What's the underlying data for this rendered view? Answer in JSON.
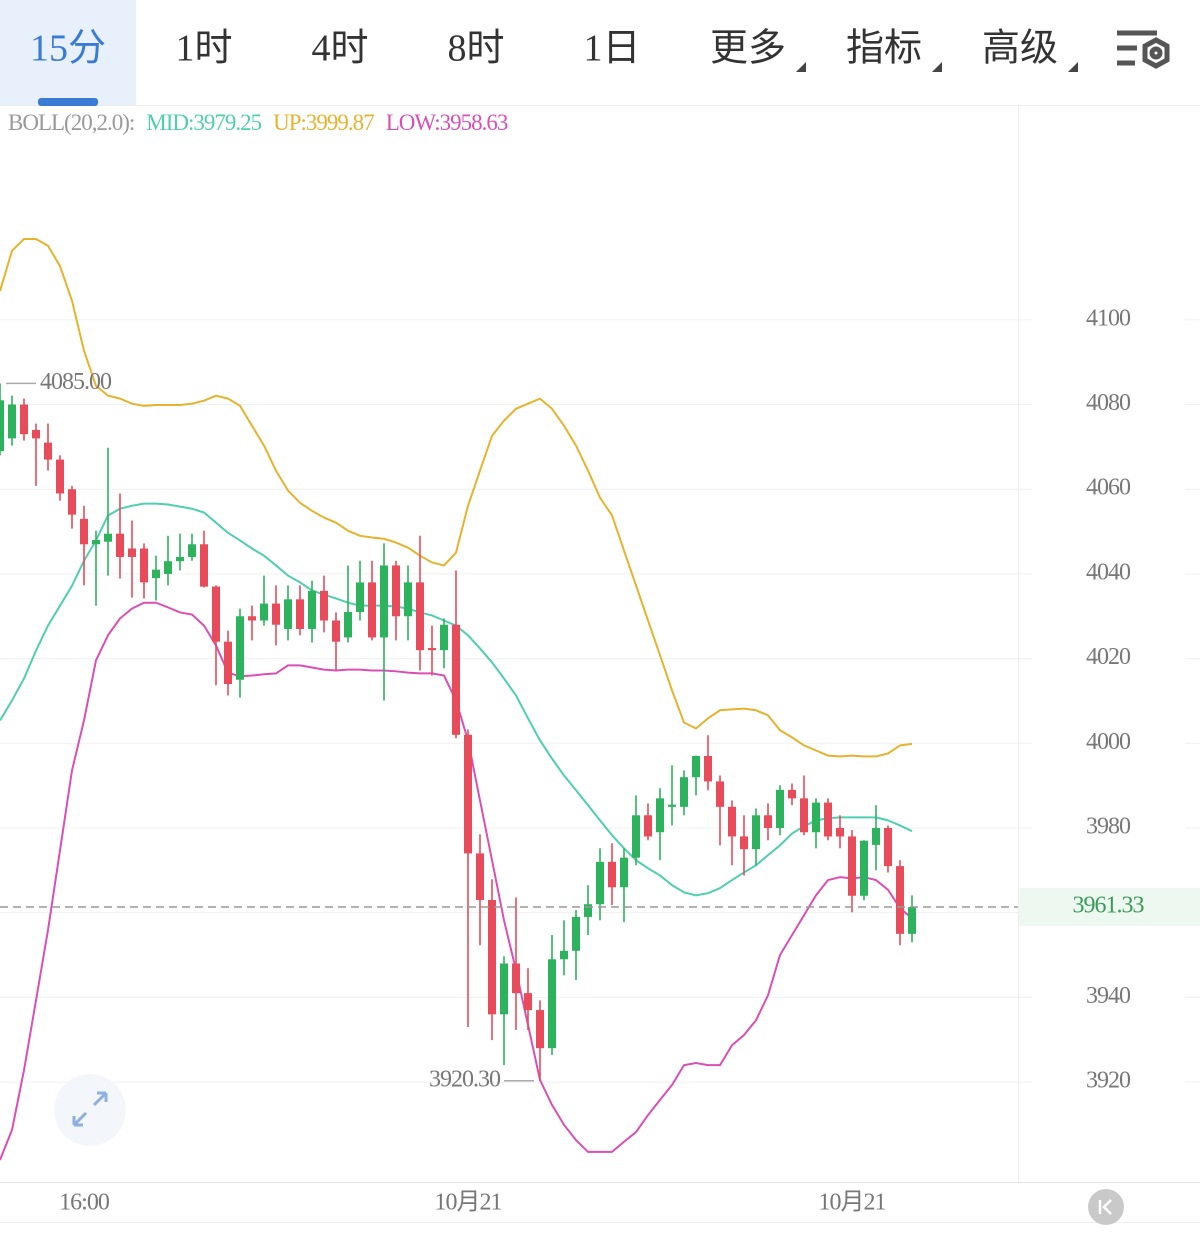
{
  "tabs": [
    {
      "label": "15分",
      "active": true
    },
    {
      "label": "1时"
    },
    {
      "label": "4时"
    },
    {
      "label": "8时"
    },
    {
      "label": "1日"
    },
    {
      "label": "更多",
      "menu": true
    },
    {
      "label": "指标",
      "menu": true
    },
    {
      "label": "高级",
      "menu": true
    }
  ],
  "chart_data": {
    "type": "candlestick",
    "indicator": "BOLL(20,2.0):",
    "categories": [
      null,
      null,
      null,
      null,
      null,
      null,
      null,
      "16:00",
      null,
      null,
      null,
      null,
      null,
      null,
      null,
      null,
      null,
      null,
      null,
      null,
      null,
      null,
      null,
      null,
      null,
      null,
      null,
      null,
      null,
      null,
      null,
      null,
      null,
      null,
      null,
      null,
      null,
      null,
      null,
      "10月21",
      null,
      null,
      null,
      null,
      null,
      null,
      null,
      null,
      null,
      null,
      null,
      null,
      null,
      null,
      null,
      null,
      null,
      null,
      null,
      null,
      null,
      null,
      null,
      null,
      null,
      null,
      null,
      null,
      null,
      null,
      null,
      "10月21",
      null,
      null,
      null,
      null,
      null
    ],
    "open": [
      4069,
      4072,
      4080,
      4074,
      4071,
      4067,
      4060,
      4053,
      4047,
      4047.6,
      4049.5,
      4046,
      4046,
      4039,
      4040,
      4043,
      4044,
      4047,
      4037,
      4024,
      4015,
      4030,
      4029,
      4033,
      4027,
      4034,
      4027,
      4036,
      4029,
      4025,
      4031,
      4038,
      4025,
      4042,
      4030,
      4038,
      4022.5,
      4022,
      4028,
      4002,
      3974,
      3963,
      3936,
      3948,
      3941,
      3937,
      3928,
      3949,
      3951,
      3959,
      3962,
      3972,
      3966,
      3973,
      3983,
      3979,
      3985,
      3985,
      3992,
      3997,
      3991,
      3985,
      3978,
      3975,
      3983,
      3980,
      3989,
      3987,
      3979,
      3986,
      3980,
      3978,
      3964,
      3976,
      3980,
      3971,
      3955
    ],
    "high": [
      4085,
      4082.1,
      4081.4,
      4075.5,
      4075.5,
      4068,
      4060.8,
      4056.1,
      4050.2,
      4069.8,
      4059,
      4052.6,
      4047.2,
      4044.3,
      4049,
      4049.5,
      4049.5,
      4050.2,
      4037.3,
      4026.6,
      4031.8,
      4032.5,
      4039.6,
      4037.3,
      4037.3,
      4037.3,
      4038.4,
      4039.6,
      4030.9,
      4042,
      4043.1,
      4043.1,
      4047.2,
      4043.1,
      4042,
      4049,
      4027.8,
      4029.5,
      4040.8,
      4003.3,
      3978.5,
      3967.9,
      3949.7,
      3963.6,
      3946.9,
      3939.3,
      3954.7,
      3958.2,
      3960.6,
      3966.5,
      3975.2,
      3976.4,
      3975.2,
      3987.7,
      3985.8,
      3989.4,
      3994.8,
      3993.6,
      3997.1,
      4001.9,
      3992.4,
      3986.5,
      3983,
      3984.6,
      3985.8,
      3990.1,
      3990.5,
      3992.4,
      3987,
      3987,
      3983,
      3979.5,
      3977.1,
      3985.4,
      3980.6,
      3972.4,
      3964.1
    ],
    "low": [
      4068,
      4070.3,
      4071.5,
      4060.8,
      4064.4,
      4057.3,
      4050.7,
      4037.3,
      4032.5,
      4039.6,
      4038.9,
      4034.4,
      4034.2,
      4033.7,
      4037.3,
      4040.8,
      4043.1,
      4036.8,
      4013.7,
      4011.3,
      4010.8,
      4024.3,
      4027.8,
      4023.1,
      4024.3,
      4025.5,
      4023.8,
      4026.2,
      4017.2,
      4023.8,
      4029,
      4024.3,
      4010.1,
      4024.3,
      4024.3,
      4017.2,
      4016,
      4017.7,
      4001.2,
      3933,
      3952.3,
      3929.9,
      3924,
      3932.3,
      3932.3,
      3920.3,
      3926.4,
      3945.2,
      3944.1,
      3954.7,
      3958.2,
      3961.8,
      3957.8,
      3971.2,
      3977.1,
      3972.4,
      3980.6,
      3983,
      3987.7,
      3988.9,
      3975.9,
      3971.2,
      3968.8,
      3971.2,
      3977.1,
      3978.3,
      3985.4,
      3978.3,
      3975.2,
      3977.1,
      3975.2,
      3960.1,
      3962.9,
      3970,
      3969.5,
      3952.3,
      3953
    ],
    "close": [
      4081,
      4080,
      4073,
      4072,
      4067,
      4059,
      4054,
      4047,
      4048,
      4049.5,
      4044,
      4044,
      4038,
      4041,
      4043,
      4044,
      4047,
      4037,
      4024,
      4014,
      4030,
      4029,
      4033,
      4028,
      4034,
      4027,
      4036,
      4029,
      4024,
      4031,
      4038,
      4025,
      4042,
      4030,
      4038,
      4022,
      4022,
      4028,
      4002,
      3974,
      3963,
      3936,
      3948,
      3941,
      3937,
      3928,
      3949,
      3951,
      3959,
      3962,
      3972,
      3966,
      3973,
      3983,
      3978,
      3987,
      3985.5,
      3992,
      3997,
      3991,
      3985,
      3978,
      3975,
      3983,
      3980,
      3989,
      3987,
      3979,
      3986,
      3978,
      3978,
      3964,
      3977,
      3980,
      3971,
      3955,
      3961.33
    ],
    "up_color": "#2db35d",
    "down_color": "#e84b5a",
    "series": [
      {
        "name": "MID:3979.25",
        "color": "#4fcfb0",
        "values": [
          4005.4,
          4010.1,
          4015.3,
          4021.9,
          4027.8,
          4032.5,
          4037.2,
          4043.1,
          4047.9,
          4053.8,
          4055.4,
          4056.1,
          4056.6,
          4056.6,
          4056.4,
          4055.9,
          4055.4,
          4054.5,
          4052.1,
          4049.7,
          4047.9,
          4046,
          4044.3,
          4042,
          4039.6,
          4038,
          4036.1,
          4035.1,
          4034.2,
          4033.2,
          4032.5,
          4032.5,
          4032.5,
          4032.3,
          4031.8,
          4030.9,
          4030.2,
          4029,
          4027.8,
          4025.5,
          4022.4,
          4019.1,
          4015.3,
          4011.3,
          4005.9,
          4000.7,
          3996.4,
          3992.4,
          3988.9,
          3985.4,
          3981.8,
          3978.3,
          3975.2,
          3972.4,
          3970.5,
          3968.8,
          3966.5,
          3964.8,
          3964.1,
          3964.6,
          3965.8,
          3967.7,
          3969.5,
          3971.2,
          3973.6,
          3975.9,
          3978.7,
          3980.4,
          3981.8,
          3982.3,
          3982.5,
          3982.5,
          3982.5,
          3982.5,
          3981.8,
          3980.6,
          3979.25
        ]
      },
      {
        "name": "UP:3999.87",
        "color": "#e6b32e",
        "values": [
          4106.8,
          4116.3,
          4119.1,
          4119.1,
          4117.5,
          4112.7,
          4104.5,
          4092.7,
          4084.4,
          4082.1,
          4081.4,
          4080.2,
          4079.7,
          4079.9,
          4079.9,
          4079.9,
          4080.2,
          4080.9,
          4082.1,
          4081.4,
          4079.7,
          4075,
          4070.3,
          4064.4,
          4059.7,
          4056.8,
          4054.9,
          4053.3,
          4052.1,
          4050.2,
          4049,
          4048.6,
          4048.3,
          4047.4,
          4046.2,
          4044.3,
          4042.7,
          4042,
          4045,
          4056.1,
          4064.4,
          4072.6,
          4076.2,
          4079,
          4080.2,
          4081.4,
          4079,
          4075,
          4070.3,
          4064.4,
          4058,
          4053.8,
          4045.5,
          4037.3,
          4029,
          4020.8,
          4012.5,
          4004.9,
          4003.5,
          4005.9,
          4007.8,
          4008,
          4008.2,
          4007.8,
          4006.6,
          4003.1,
          4001.4,
          3999.5,
          3998.3,
          3997.1,
          3996.9,
          3997.1,
          3996.9,
          3996.9,
          3997.6,
          3999.5,
          3999.87
        ]
      },
      {
        "name": "LOW:3958.63",
        "color": "#d94fb5",
        "values": [
          3901.6,
          3908.7,
          3922.8,
          3939.3,
          3955.9,
          3974.7,
          3993.6,
          4005.4,
          4019.6,
          4025.5,
          4029.5,
          4031.8,
          4033.2,
          4033.2,
          4032.1,
          4030.9,
          4030.4,
          4027.8,
          4023.1,
          4016.7,
          4015.8,
          4016,
          4016.3,
          4016.5,
          4018.4,
          4018.4,
          4017.9,
          4017.4,
          4017.2,
          4017.4,
          4017.4,
          4017.2,
          4017.2,
          4017,
          4016.7,
          4016.5,
          4016.5,
          4016,
          4010.1,
          4000.7,
          3986.5,
          3972.4,
          3958.2,
          3946.4,
          3933.5,
          3920.5,
          3914.6,
          3909.9,
          3906.3,
          3903.5,
          3903.5,
          3903.5,
          3905.9,
          3908.2,
          3912.2,
          3915.8,
          3919.3,
          3924,
          3924.5,
          3924,
          3924,
          3928.7,
          3931.1,
          3934.6,
          3940.5,
          3950,
          3954.7,
          3959.4,
          3964.1,
          3967.7,
          3968.4,
          3968.1,
          3968.4,
          3967.7,
          3965.4,
          3961.1,
          3958.63
        ]
      }
    ],
    "annotations": [
      {
        "value": 4085,
        "label": "4085.00"
      },
      {
        "value": 3920.3,
        "label": "3920.30"
      }
    ],
    "last_price": {
      "value": 3961.33,
      "label": "3961.33"
    },
    "ylim": [
      3896.4,
      4150.5
    ],
    "yticks": [
      3920,
      3940,
      3960,
      3980,
      4000,
      4020,
      4040,
      4060,
      4080,
      4100
    ],
    "grid": true
  }
}
